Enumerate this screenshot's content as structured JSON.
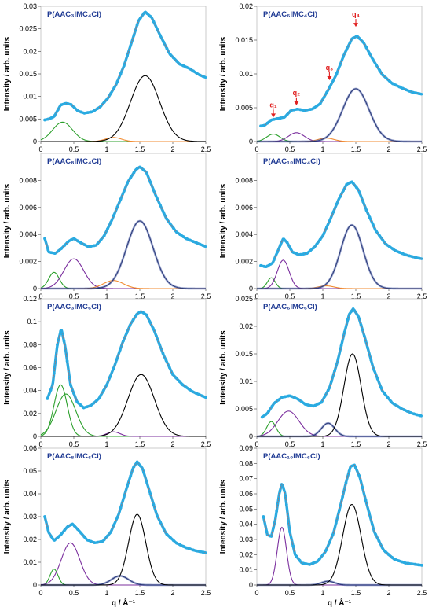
{
  "figure": {
    "ylabel": "Intensity / arb. units",
    "xlabel": "q / Å⁻¹"
  },
  "colors": {
    "data": "#29abe2",
    "total_fit": "#e8553b",
    "gaussian_green": "#2ca02c",
    "gaussian_orange": "#f28b30",
    "gaussian_purple": "#7b2f9e",
    "gaussian_black": "#000000",
    "gaussian_blue": "#3b4e9e",
    "annotation": "#e02020",
    "title": "#1f3a93"
  },
  "chart_data": [
    {
      "type": "line",
      "title": "P(AAC₃IMC₄Cl)",
      "xlim": [
        0,
        2.5
      ],
      "ylim": [
        0,
        0.03
      ],
      "xticks": [
        "0",
        "0.5",
        "1",
        "1.5",
        "2",
        "2.5"
      ],
      "yticks": [
        "0",
        "0.005",
        "0.01",
        "0.015",
        "0.02",
        "0.025",
        "0.03"
      ],
      "data_baseline": [
        [
          0.06,
          0.0048
        ],
        [
          0.12,
          0.005
        ],
        [
          0.2,
          0.0055
        ],
        [
          0.3,
          0.0081
        ],
        [
          0.38,
          0.0085
        ],
        [
          0.46,
          0.0082
        ],
        [
          0.56,
          0.0068
        ],
        [
          0.66,
          0.0063
        ],
        [
          0.78,
          0.0066
        ],
        [
          0.9,
          0.0077
        ],
        [
          1.02,
          0.0097
        ],
        [
          1.14,
          0.0126
        ],
        [
          1.26,
          0.0168
        ],
        [
          1.38,
          0.0222
        ],
        [
          1.48,
          0.0268
        ],
        [
          1.58,
          0.0288
        ],
        [
          1.68,
          0.0275
        ],
        [
          1.8,
          0.0238
        ],
        [
          1.95,
          0.0195
        ],
        [
          2.1,
          0.0172
        ],
        [
          2.25,
          0.0162
        ],
        [
          2.4,
          0.0148
        ],
        [
          2.5,
          0.0142
        ]
      ],
      "peaks": [
        {
          "color": "gaussian_green",
          "center": 0.33,
          "amplitude": 0.0043,
          "width": 0.15
        },
        {
          "color": "gaussian_orange",
          "center": 1.1,
          "amplitude": 0.0009,
          "width": 0.12
        },
        {
          "color": "gaussian_black",
          "center": 1.58,
          "amplitude": 0.0146,
          "width": 0.22
        }
      ],
      "annotations": []
    },
    {
      "type": "line",
      "title": "P(AAC₆IMC₄Cl)",
      "xlim": [
        0,
        2.5
      ],
      "ylim": [
        0,
        0.02
      ],
      "xticks": [
        "0",
        "0.5",
        "1",
        "1.5",
        "2",
        "2.5"
      ],
      "yticks": [
        "0",
        "0.005",
        "0.01",
        "0.015",
        "0.02"
      ],
      "data_baseline": [
        [
          0.06,
          0.0023
        ],
        [
          0.12,
          0.0024
        ],
        [
          0.22,
          0.0032
        ],
        [
          0.32,
          0.0034
        ],
        [
          0.42,
          0.0036
        ],
        [
          0.52,
          0.0046
        ],
        [
          0.62,
          0.0048
        ],
        [
          0.72,
          0.0046
        ],
        [
          0.84,
          0.0048
        ],
        [
          0.96,
          0.0056
        ],
        [
          1.08,
          0.0076
        ],
        [
          1.2,
          0.0098
        ],
        [
          1.32,
          0.0128
        ],
        [
          1.44,
          0.0152
        ],
        [
          1.52,
          0.0156
        ],
        [
          1.62,
          0.0146
        ],
        [
          1.76,
          0.0121
        ],
        [
          1.9,
          0.0099
        ],
        [
          2.05,
          0.0086
        ],
        [
          2.2,
          0.0079
        ],
        [
          2.35,
          0.0073
        ],
        [
          2.5,
          0.007
        ]
      ],
      "peaks": [
        {
          "color": "gaussian_green",
          "center": 0.25,
          "amplitude": 0.0011,
          "width": 0.1
        },
        {
          "color": "gaussian_purple",
          "center": 0.6,
          "amplitude": 0.0013,
          "width": 0.12
        },
        {
          "color": "gaussian_orange",
          "center": 1.05,
          "amplitude": 0.0005,
          "width": 0.12
        },
        {
          "color": "gaussian_blue",
          "center": 1.5,
          "amplitude": 0.0078,
          "width": 0.2
        }
      ],
      "annotations": [
        {
          "label": "q₁",
          "x": 0.25,
          "y": 0.0038
        },
        {
          "label": "q₂",
          "x": 0.6,
          "y": 0.0056
        },
        {
          "label": "q₃",
          "x": 1.1,
          "y": 0.0093
        },
        {
          "label": "q₄",
          "x": 1.5,
          "y": 0.0172
        }
      ]
    },
    {
      "type": "line",
      "title": "P(AAC₈IMC₄Cl)",
      "xlim": [
        0,
        2.5
      ],
      "ylim": [
        0,
        0.01
      ],
      "xticks": [
        "0",
        "0.5",
        "1",
        "1.5",
        "2",
        "2.5"
      ],
      "yticks": [
        "0",
        "0.002",
        "0.004",
        "0.006",
        "0.008"
      ],
      "data_baseline": [
        [
          0.06,
          0.0037
        ],
        [
          0.12,
          0.0027
        ],
        [
          0.22,
          0.0026
        ],
        [
          0.32,
          0.003
        ],
        [
          0.42,
          0.0035
        ],
        [
          0.5,
          0.0037
        ],
        [
          0.6,
          0.0034
        ],
        [
          0.72,
          0.0031
        ],
        [
          0.84,
          0.0032
        ],
        [
          0.96,
          0.0039
        ],
        [
          1.08,
          0.0051
        ],
        [
          1.2,
          0.0065
        ],
        [
          1.32,
          0.0079
        ],
        [
          1.44,
          0.0088
        ],
        [
          1.5,
          0.009
        ],
        [
          1.6,
          0.0086
        ],
        [
          1.74,
          0.0069
        ],
        [
          1.9,
          0.0052
        ],
        [
          2.05,
          0.0042
        ],
        [
          2.2,
          0.0037
        ],
        [
          2.35,
          0.0034
        ],
        [
          2.5,
          0.0031
        ]
      ],
      "peaks": [
        {
          "color": "gaussian_green",
          "center": 0.2,
          "amplitude": 0.0012,
          "width": 0.08
        },
        {
          "color": "gaussian_purple",
          "center": 0.5,
          "amplitude": 0.0022,
          "width": 0.15
        },
        {
          "color": "gaussian_orange",
          "center": 1.1,
          "amplitude": 0.0006,
          "width": 0.15
        },
        {
          "color": "gaussian_blue",
          "center": 1.5,
          "amplitude": 0.005,
          "width": 0.2
        }
      ],
      "annotations": []
    },
    {
      "type": "line",
      "title": "P(AAC₁₀IMC₄Cl)",
      "xlim": [
        0,
        2.5
      ],
      "ylim": [
        0,
        0.01
      ],
      "xticks": [
        "0",
        "0.5",
        "1",
        "1.5",
        "2",
        "2.5"
      ],
      "yticks": [
        "0",
        "0.002",
        "0.004",
        "0.006",
        "0.008"
      ],
      "data_baseline": [
        [
          0.06,
          0.0017
        ],
        [
          0.14,
          0.0016
        ],
        [
          0.24,
          0.0019
        ],
        [
          0.32,
          0.0028
        ],
        [
          0.4,
          0.0037
        ],
        [
          0.46,
          0.0034
        ],
        [
          0.54,
          0.0027
        ],
        [
          0.64,
          0.0025
        ],
        [
          0.76,
          0.0026
        ],
        [
          0.88,
          0.0031
        ],
        [
          1.0,
          0.0039
        ],
        [
          1.12,
          0.0052
        ],
        [
          1.24,
          0.0066
        ],
        [
          1.36,
          0.0077
        ],
        [
          1.44,
          0.0079
        ],
        [
          1.54,
          0.0073
        ],
        [
          1.66,
          0.0058
        ],
        [
          1.8,
          0.0043
        ],
        [
          1.95,
          0.0033
        ],
        [
          2.1,
          0.0028
        ],
        [
          2.25,
          0.0025
        ],
        [
          2.4,
          0.0023
        ],
        [
          2.5,
          0.0022
        ]
      ],
      "peaks": [
        {
          "color": "gaussian_green",
          "center": 0.22,
          "amplitude": 0.0008,
          "width": 0.06
        },
        {
          "color": "gaussian_purple",
          "center": 0.4,
          "amplitude": 0.0021,
          "width": 0.09
        },
        {
          "color": "gaussian_orange",
          "center": 1.05,
          "amplitude": 0.0002,
          "width": 0.12
        },
        {
          "color": "gaussian_blue",
          "center": 1.44,
          "amplitude": 0.0047,
          "width": 0.17
        }
      ],
      "annotations": []
    },
    {
      "type": "line",
      "title": "P(AAC₃IMC₆Cl)",
      "xlim": [
        0,
        2.5
      ],
      "ylim": [
        0,
        0.12
      ],
      "xticks": [
        "0",
        "0.5",
        "1",
        "1.5",
        "2",
        "2.5"
      ],
      "yticks": [
        "0",
        "0.02",
        "0.04",
        "0.06",
        "0.08",
        "0.1",
        "0.12"
      ],
      "data_baseline": [
        [
          0.1,
          0.033
        ],
        [
          0.18,
          0.045
        ],
        [
          0.25,
          0.08
        ],
        [
          0.31,
          0.094
        ],
        [
          0.37,
          0.078
        ],
        [
          0.45,
          0.045
        ],
        [
          0.55,
          0.03
        ],
        [
          0.65,
          0.025
        ],
        [
          0.76,
          0.027
        ],
        [
          0.88,
          0.033
        ],
        [
          1.0,
          0.045
        ],
        [
          1.12,
          0.062
        ],
        [
          1.24,
          0.082
        ],
        [
          1.36,
          0.098
        ],
        [
          1.46,
          0.107
        ],
        [
          1.52,
          0.109
        ],
        [
          1.6,
          0.106
        ],
        [
          1.72,
          0.092
        ],
        [
          1.86,
          0.071
        ],
        [
          2.0,
          0.054
        ],
        [
          2.15,
          0.045
        ],
        [
          2.3,
          0.039
        ],
        [
          2.5,
          0.034
        ]
      ],
      "peaks": [
        {
          "color": "gaussian_green",
          "center": 0.3,
          "amplitude": 0.045,
          "width": 0.1
        },
        {
          "color": "gaussian_green",
          "center": 0.38,
          "amplitude": 0.037,
          "width": 0.15
        },
        {
          "color": "gaussian_purple",
          "center": 1.1,
          "amplitude": 0.004,
          "width": 0.1
        },
        {
          "color": "gaussian_black",
          "center": 1.52,
          "amplitude": 0.054,
          "width": 0.2
        }
      ],
      "annotations": []
    },
    {
      "type": "line",
      "title": "P(AAC₆IMC₆Cl)",
      "xlim": [
        0,
        2.5
      ],
      "ylim": [
        0,
        0.025
      ],
      "xticks": [
        "0",
        "0.5",
        "1",
        "1.5",
        "2",
        "2.5"
      ],
      "yticks": [
        "0",
        "0.005",
        "0.01",
        "0.015",
        "0.02",
        "0.025"
      ],
      "data_baseline": [
        [
          0.08,
          0.0035
        ],
        [
          0.16,
          0.0042
        ],
        [
          0.26,
          0.006
        ],
        [
          0.38,
          0.0071
        ],
        [
          0.5,
          0.0074
        ],
        [
          0.62,
          0.0068
        ],
        [
          0.74,
          0.0058
        ],
        [
          0.86,
          0.0055
        ],
        [
          0.98,
          0.0062
        ],
        [
          1.1,
          0.0088
        ],
        [
          1.22,
          0.0135
        ],
        [
          1.32,
          0.0185
        ],
        [
          1.4,
          0.0222
        ],
        [
          1.46,
          0.0232
        ],
        [
          1.54,
          0.0218
        ],
        [
          1.64,
          0.0178
        ],
        [
          1.76,
          0.0126
        ],
        [
          1.9,
          0.0083
        ],
        [
          2.05,
          0.0061
        ],
        [
          2.2,
          0.005
        ],
        [
          2.35,
          0.0042
        ],
        [
          2.5,
          0.0037
        ]
      ],
      "peaks": [
        {
          "color": "gaussian_green",
          "center": 0.22,
          "amplitude": 0.0027,
          "width": 0.07
        },
        {
          "color": "gaussian_purple",
          "center": 0.48,
          "amplitude": 0.0046,
          "width": 0.16
        },
        {
          "color": "gaussian_blue",
          "center": 1.08,
          "amplitude": 0.0024,
          "width": 0.1
        },
        {
          "color": "gaussian_black",
          "center": 1.45,
          "amplitude": 0.015,
          "width": 0.13
        }
      ],
      "annotations": []
    },
    {
      "type": "line",
      "title": "P(AAC₈IMC₆Cl)",
      "xlim": [
        0,
        2.5
      ],
      "ylim": [
        0,
        0.06
      ],
      "xticks": [
        "0",
        "0.5",
        "1",
        "1.5",
        "2",
        "2.5"
      ],
      "yticks": [
        "0",
        "0.01",
        "0.02",
        "0.03",
        "0.04",
        "0.05",
        "0.06"
      ],
      "data_baseline": [
        [
          0.06,
          0.03
        ],
        [
          0.12,
          0.023
        ],
        [
          0.2,
          0.0195
        ],
        [
          0.3,
          0.022
        ],
        [
          0.4,
          0.0255
        ],
        [
          0.48,
          0.0268
        ],
        [
          0.58,
          0.0238
        ],
        [
          0.7,
          0.0198
        ],
        [
          0.82,
          0.0185
        ],
        [
          0.94,
          0.0192
        ],
        [
          1.06,
          0.0232
        ],
        [
          1.18,
          0.031
        ],
        [
          1.3,
          0.0425
        ],
        [
          1.4,
          0.0515
        ],
        [
          1.46,
          0.054
        ],
        [
          1.54,
          0.0512
        ],
        [
          1.64,
          0.0418
        ],
        [
          1.76,
          0.0305
        ],
        [
          1.9,
          0.0225
        ],
        [
          2.05,
          0.0185
        ],
        [
          2.2,
          0.0164
        ],
        [
          2.35,
          0.015
        ],
        [
          2.5,
          0.0142
        ]
      ],
      "peaks": [
        {
          "color": "gaussian_green",
          "center": 0.2,
          "amplitude": 0.007,
          "width": 0.06
        },
        {
          "color": "gaussian_purple",
          "center": 0.45,
          "amplitude": 0.0185,
          "width": 0.14
        },
        {
          "color": "gaussian_blue",
          "center": 1.2,
          "amplitude": 0.004,
          "width": 0.13
        },
        {
          "color": "gaussian_black",
          "center": 1.46,
          "amplitude": 0.031,
          "width": 0.13
        }
      ],
      "annotations": []
    },
    {
      "type": "line",
      "title": "P(AAC₁₀IMC₆Cl)",
      "xlim": [
        0,
        2.5
      ],
      "ylim": [
        0,
        0.09
      ],
      "xticks": [
        "0",
        "0.5",
        "1",
        "1.5",
        "2",
        "2.5"
      ],
      "yticks": [
        "0",
        "0.01",
        "0.02",
        "0.03",
        "0.04",
        "0.05",
        "0.06",
        "0.07",
        "0.08",
        "0.09"
      ],
      "data_baseline": [
        [
          0.1,
          0.045
        ],
        [
          0.16,
          0.033
        ],
        [
          0.22,
          0.032
        ],
        [
          0.28,
          0.043
        ],
        [
          0.34,
          0.06
        ],
        [
          0.38,
          0.067
        ],
        [
          0.43,
          0.06
        ],
        [
          0.5,
          0.035
        ],
        [
          0.58,
          0.02
        ],
        [
          0.68,
          0.0145
        ],
        [
          0.8,
          0.0135
        ],
        [
          0.92,
          0.0155
        ],
        [
          1.04,
          0.022
        ],
        [
          1.16,
          0.034
        ],
        [
          1.26,
          0.051
        ],
        [
          1.36,
          0.069
        ],
        [
          1.42,
          0.078
        ],
        [
          1.48,
          0.079
        ],
        [
          1.56,
          0.071
        ],
        [
          1.66,
          0.054
        ],
        [
          1.78,
          0.035
        ],
        [
          1.92,
          0.023
        ],
        [
          2.08,
          0.017
        ],
        [
          2.25,
          0.0145
        ],
        [
          2.5,
          0.013
        ]
      ],
      "peaks": [
        {
          "color": "gaussian_purple",
          "center": 0.38,
          "amplitude": 0.038,
          "width": 0.07
        },
        {
          "color": "gaussian_blue",
          "center": 1.08,
          "amplitude": 0.0025,
          "width": 0.1
        },
        {
          "color": "gaussian_black",
          "center": 1.44,
          "amplitude": 0.053,
          "width": 0.14
        }
      ],
      "annotations": []
    }
  ]
}
